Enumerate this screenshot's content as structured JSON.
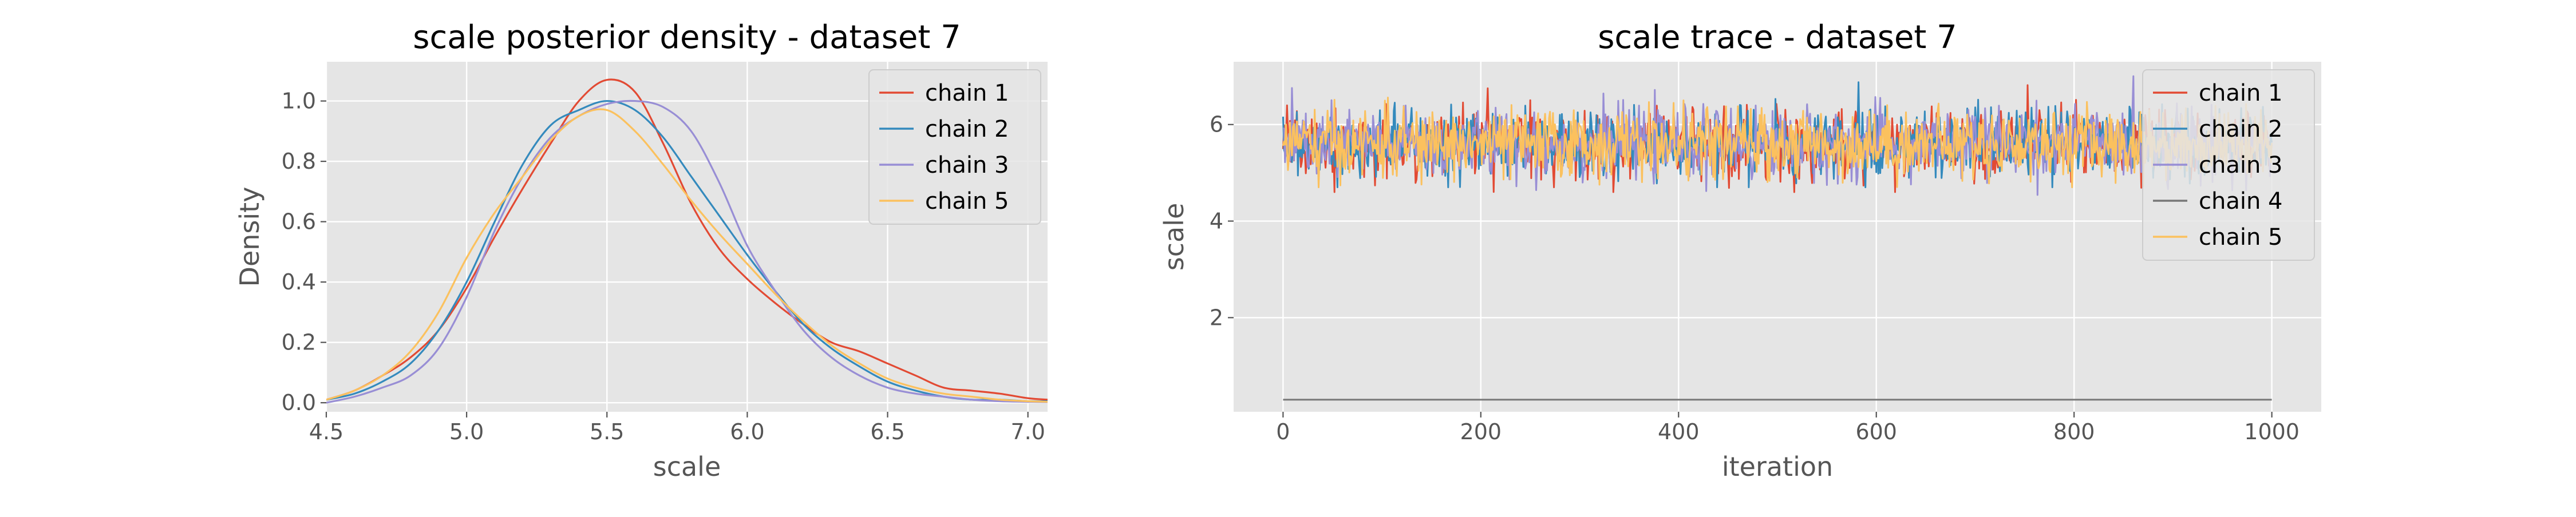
{
  "chart_data": [
    {
      "type": "line",
      "title": "scale posterior density - dataset 7",
      "xlabel": "scale",
      "ylabel": "Density",
      "xlim": [
        4.5,
        7.07
      ],
      "ylim": [
        -0.03,
        1.13
      ],
      "xticks": [
        4.5,
        5.0,
        5.5,
        6.0,
        6.5,
        7.0
      ],
      "xtick_labels": [
        "4.5",
        "5.0",
        "5.5",
        "6.0",
        "6.5",
        "7.0"
      ],
      "yticks": [
        0.0,
        0.2,
        0.4,
        0.6,
        0.8,
        1.0
      ],
      "ytick_labels": [
        "0.0",
        "0.2",
        "0.4",
        "0.6",
        "0.8",
        "1.0"
      ],
      "grid": true,
      "legend_position": "top-right",
      "series": [
        {
          "name": "chain 1",
          "color": "#E24A33",
          "x": [
            4.5,
            4.6,
            4.7,
            4.8,
            4.9,
            5.0,
            5.1,
            5.2,
            5.3,
            5.4,
            5.5,
            5.6,
            5.7,
            5.8,
            5.9,
            6.0,
            6.1,
            6.2,
            6.3,
            6.4,
            6.5,
            6.6,
            6.7,
            6.8,
            6.9,
            7.0,
            7.07
          ],
          "y": [
            0.01,
            0.04,
            0.09,
            0.15,
            0.24,
            0.38,
            0.55,
            0.71,
            0.86,
            1.0,
            1.07,
            1.03,
            0.86,
            0.66,
            0.51,
            0.41,
            0.33,
            0.26,
            0.2,
            0.17,
            0.13,
            0.09,
            0.05,
            0.04,
            0.03,
            0.015,
            0.01
          ]
        },
        {
          "name": "chain 2",
          "color": "#348ABD",
          "x": [
            4.5,
            4.6,
            4.7,
            4.8,
            4.9,
            5.0,
            5.1,
            5.2,
            5.3,
            5.4,
            5.5,
            5.6,
            5.7,
            5.8,
            5.9,
            6.0,
            6.1,
            6.2,
            6.3,
            6.4,
            6.5,
            6.6,
            6.7,
            6.8,
            6.9,
            7.0,
            7.07
          ],
          "y": [
            0.01,
            0.03,
            0.07,
            0.13,
            0.24,
            0.4,
            0.6,
            0.79,
            0.92,
            0.97,
            1.0,
            0.97,
            0.88,
            0.75,
            0.62,
            0.49,
            0.37,
            0.26,
            0.18,
            0.12,
            0.07,
            0.04,
            0.02,
            0.01,
            0.01,
            0.005,
            0.005
          ]
        },
        {
          "name": "chain 3",
          "color": "#988ED5",
          "x": [
            4.5,
            4.6,
            4.7,
            4.8,
            4.9,
            5.0,
            5.1,
            5.2,
            5.3,
            5.4,
            5.5,
            5.6,
            5.7,
            5.8,
            5.9,
            6.0,
            6.1,
            6.2,
            6.3,
            6.4,
            6.5,
            6.6,
            6.7,
            6.8,
            6.9,
            7.0,
            7.07
          ],
          "y": [
            0.0,
            0.02,
            0.05,
            0.09,
            0.18,
            0.35,
            0.57,
            0.75,
            0.88,
            0.95,
            0.99,
            1.0,
            0.98,
            0.9,
            0.73,
            0.52,
            0.37,
            0.24,
            0.15,
            0.09,
            0.05,
            0.03,
            0.02,
            0.01,
            0.005,
            0.003,
            0.002
          ]
        },
        {
          "name": "chain 5",
          "color": "#FBC15E",
          "x": [
            4.5,
            4.6,
            4.7,
            4.8,
            4.9,
            5.0,
            5.1,
            5.2,
            5.3,
            5.4,
            5.5,
            5.6,
            5.7,
            5.8,
            5.9,
            6.0,
            6.1,
            6.2,
            6.3,
            6.4,
            6.5,
            6.6,
            6.7,
            6.8,
            6.9,
            7.0,
            7.07
          ],
          "y": [
            0.01,
            0.04,
            0.09,
            0.17,
            0.3,
            0.48,
            0.63,
            0.75,
            0.87,
            0.95,
            0.97,
            0.9,
            0.79,
            0.67,
            0.56,
            0.46,
            0.36,
            0.27,
            0.19,
            0.13,
            0.08,
            0.05,
            0.03,
            0.02,
            0.01,
            0.005,
            0.003
          ]
        }
      ]
    },
    {
      "type": "line",
      "title": "scale trace - dataset 7",
      "xlabel": "iteration",
      "ylabel": "scale",
      "xlim": [
        -50,
        1050
      ],
      "ylim": [
        0.05,
        7.3
      ],
      "xticks": [
        0,
        200,
        400,
        600,
        800,
        1000
      ],
      "xtick_labels": [
        "0",
        "200",
        "400",
        "600",
        "800",
        "1000"
      ],
      "yticks": [
        2,
        4,
        6
      ],
      "ytick_labels": [
        "2",
        "4",
        "6"
      ],
      "grid": true,
      "legend_position": "top-right",
      "iterations": [
        0,
        1000
      ],
      "series": [
        {
          "name": "chain 1",
          "color": "#E24A33",
          "mean": 5.6,
          "sd": 0.35,
          "min": 4.6,
          "max": 7.0
        },
        {
          "name": "chain 2",
          "color": "#348ABD",
          "mean": 5.6,
          "sd": 0.35,
          "min": 4.7,
          "max": 6.95
        },
        {
          "name": "chain 3",
          "color": "#988ED5",
          "mean": 5.6,
          "sd": 0.35,
          "min": 4.4,
          "max": 7.0
        },
        {
          "name": "chain 4",
          "color": "#777777",
          "mean": 0.3,
          "sd": 0.0,
          "min": 0.3,
          "max": 0.3
        },
        {
          "name": "chain 5",
          "color": "#FBC15E",
          "mean": 5.6,
          "sd": 0.35,
          "min": 4.7,
          "max": 6.9
        }
      ]
    }
  ]
}
